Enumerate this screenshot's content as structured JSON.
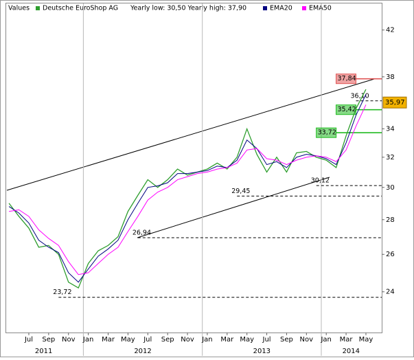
{
  "chart_data": {
    "type": "line",
    "legend_title": "Values",
    "legend_note": "Yearly low: 30,50 Yearly high: 37,90",
    "yscale": "log",
    "xlim": [
      "2011-05",
      "2014-06"
    ],
    "ylim": [
      22,
      44
    ],
    "yticks": [
      24,
      26,
      28,
      30,
      32,
      34,
      38,
      42
    ],
    "xticks": [
      {
        "value": "2011-07",
        "label": "Jul"
      },
      {
        "value": "2011-09",
        "label": "Sep"
      },
      {
        "value": "2011-11",
        "label": "Nov"
      },
      {
        "value": "2012-01",
        "label": "Jan"
      },
      {
        "value": "2012-03",
        "label": "Mar"
      },
      {
        "value": "2012-05",
        "label": "May"
      },
      {
        "value": "2012-07",
        "label": "Jul"
      },
      {
        "value": "2012-09",
        "label": "Sep"
      },
      {
        "value": "2012-11",
        "label": "Nov"
      },
      {
        "value": "2013-01",
        "label": "Jan"
      },
      {
        "value": "2013-03",
        "label": "Mar"
      },
      {
        "value": "2013-05",
        "label": "May"
      },
      {
        "value": "2013-07",
        "label": "Jul"
      },
      {
        "value": "2013-09",
        "label": "Sep"
      },
      {
        "value": "2013-11",
        "label": "Nov"
      },
      {
        "value": "2014-01",
        "label": "Jan"
      },
      {
        "value": "2014-03",
        "label": "Mar"
      },
      {
        "value": "2014-05",
        "label": "May"
      }
    ],
    "years": [
      "2011",
      "2012",
      "2013",
      "2014"
    ],
    "x": [
      "2011-05",
      "2011-06",
      "2011-07",
      "2011-08",
      "2011-09",
      "2011-10",
      "2011-11",
      "2011-12",
      "2012-01",
      "2012-02",
      "2012-03",
      "2012-04",
      "2012-05",
      "2012-06",
      "2012-07",
      "2012-08",
      "2012-09",
      "2012-10",
      "2012-11",
      "2012-12",
      "2013-01",
      "2013-02",
      "2013-03",
      "2013-04",
      "2013-05",
      "2013-06",
      "2013-07",
      "2013-08",
      "2013-09",
      "2013-10",
      "2013-11",
      "2013-12",
      "2014-01",
      "2014-02",
      "2014-03",
      "2014-04",
      "2014-05"
    ],
    "series": [
      {
        "name": "Deutsche EuroShop AG",
        "color": "#2e9e2e",
        "values": [
          29.0,
          28.2,
          27.5,
          26.4,
          26.5,
          26.0,
          24.5,
          24.2,
          25.5,
          26.2,
          26.5,
          27.0,
          28.5,
          29.5,
          30.5,
          30.0,
          30.5,
          31.2,
          30.8,
          31.0,
          31.2,
          31.6,
          31.2,
          32.0,
          34.0,
          32.2,
          31.0,
          32.0,
          31.0,
          32.3,
          32.4,
          32.0,
          31.8,
          31.3,
          33.5,
          35.5,
          37.0
        ]
      },
      {
        "name": "EMA20",
        "color": "#000080",
        "values": [
          28.8,
          28.4,
          27.8,
          26.8,
          26.4,
          26.1,
          25.0,
          24.5,
          25.2,
          25.9,
          26.3,
          26.8,
          28.0,
          29.0,
          30.0,
          30.1,
          30.3,
          30.9,
          30.9,
          31.0,
          31.1,
          31.4,
          31.3,
          31.8,
          33.2,
          32.6,
          31.5,
          31.7,
          31.3,
          32.0,
          32.2,
          32.1,
          31.9,
          31.5,
          33.0,
          35.0,
          36.6
        ]
      },
      {
        "name": "EMA50",
        "color": "#ff00ff",
        "values": [
          28.5,
          28.6,
          28.2,
          27.4,
          26.9,
          26.5,
          25.6,
          24.9,
          25.0,
          25.5,
          26.0,
          26.4,
          27.3,
          28.2,
          29.2,
          29.7,
          30.0,
          30.5,
          30.7,
          30.9,
          31.0,
          31.2,
          31.3,
          31.6,
          32.5,
          32.6,
          31.9,
          31.8,
          31.5,
          31.8,
          32.0,
          32.1,
          32.0,
          31.7,
          32.5,
          34.2,
          35.8
        ]
      }
    ],
    "levels": [
      {
        "value": 37.84,
        "label": "37,84",
        "from": "2014-04",
        "color": "#e05555",
        "style": "solid",
        "box": true
      },
      {
        "value": 36.1,
        "label": "36,10",
        "from": "2014-04",
        "color": "#000000",
        "style": "dashed",
        "box": false
      },
      {
        "value": 35.42,
        "label": "35,42",
        "from": "2014-04",
        "color": "#22bb22",
        "style": "solid",
        "box": true
      },
      {
        "value": 33.72,
        "label": "33,72",
        "from": "2014-02",
        "color": "#22bb22",
        "style": "solid",
        "box": true
      },
      {
        "value": 30.12,
        "label": "30,12",
        "from": "2013-12",
        "color": "#000000",
        "style": "dashed",
        "box": false
      },
      {
        "value": 29.45,
        "label": "29,45",
        "from": "2013-04",
        "color": "#000000",
        "style": "dashed",
        "box": false
      },
      {
        "value": 26.94,
        "label": "26,94",
        "from": "2012-06",
        "color": "#000000",
        "style": "dashed",
        "box": false
      },
      {
        "value": 23.72,
        "label": "23,72",
        "from": "2011-10",
        "color": "#000000",
        "style": "dashed",
        "box": false
      }
    ],
    "last_price": {
      "value": 35.97,
      "label": "35,97",
      "color": "#f2b200"
    }
  }
}
